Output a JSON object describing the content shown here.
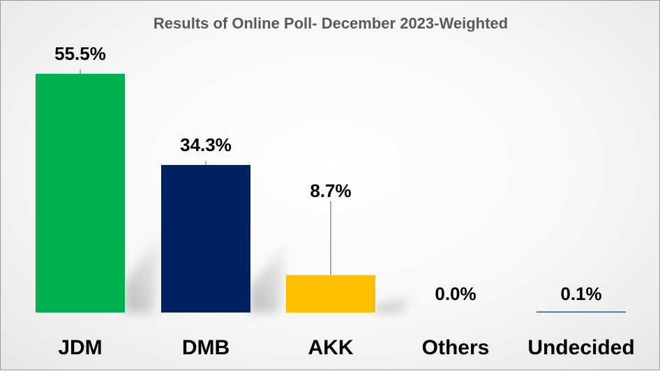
{
  "chart_data": {
    "type": "bar",
    "title": "Results of Online Poll- December 2023-Weighted",
    "categories": [
      "JDM",
      "DMB",
      "AKK",
      "Others",
      "Undecided"
    ],
    "values": [
      55.5,
      34.3,
      8.7,
      0.0,
      0.1
    ],
    "data_labels": [
      "55.5%",
      "34.3%",
      "8.7%",
      "0.0%",
      "0.1%"
    ],
    "colors": [
      "#00b050",
      "#002060",
      "#ffc000",
      "#7f7f7f",
      "#2e5597"
    ],
    "xlabel": "",
    "ylabel": "",
    "ylim": [
      0,
      55.5
    ],
    "grid": false,
    "legend": "none"
  }
}
